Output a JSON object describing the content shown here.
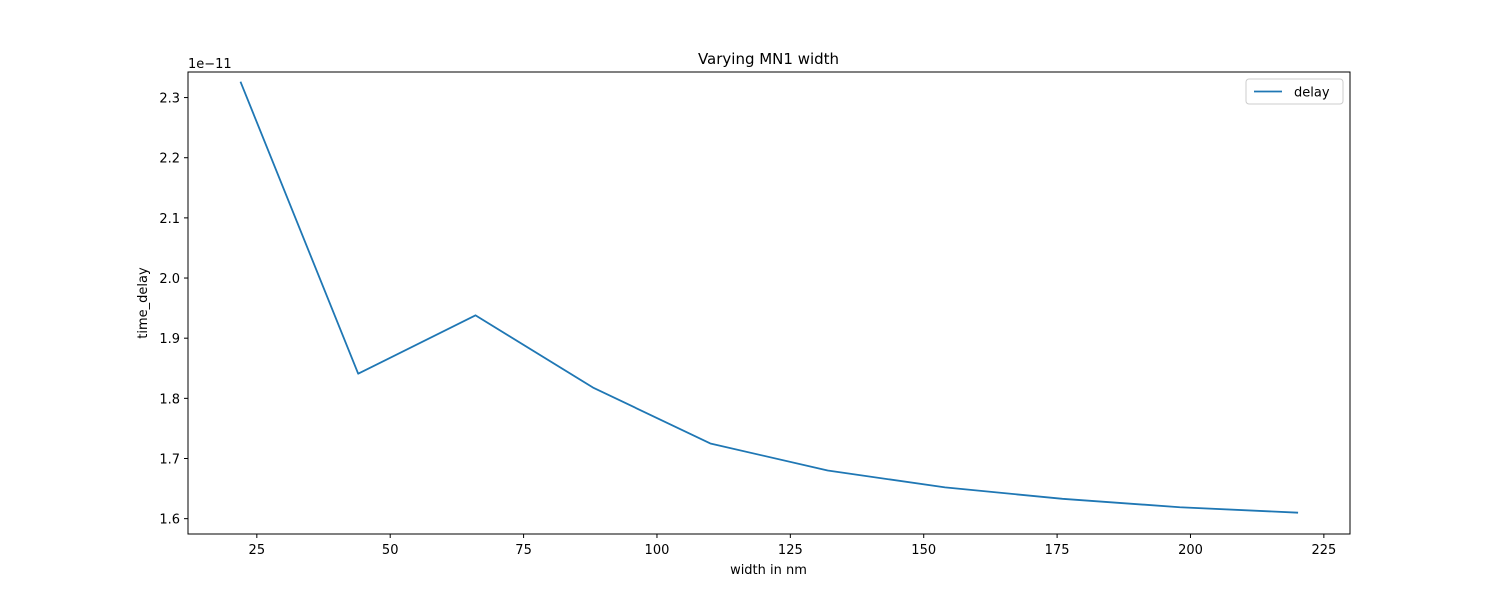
{
  "chart_data": {
    "type": "line",
    "title": "Varying MN1 width",
    "xlabel": "width in nm",
    "ylabel": "time_delay",
    "y_offset_label": "1e−11",
    "xlim": [
      12.1,
      229.9
    ],
    "ylim": [
      1.5745,
      2.3425
    ],
    "xticks": [
      25,
      50,
      75,
      100,
      125,
      150,
      175,
      200,
      225
    ],
    "xtick_labels": [
      "25",
      "50",
      "75",
      "100",
      "125",
      "150",
      "175",
      "200",
      "225"
    ],
    "yticks": [
      1.6,
      1.7,
      1.8,
      1.9,
      2.0,
      2.1,
      2.2,
      2.3
    ],
    "ytick_labels": [
      "1.6",
      "1.7",
      "1.8",
      "1.9",
      "2.0",
      "2.1",
      "2.2",
      "2.3"
    ],
    "grid": false,
    "legend_position": "top-right",
    "series": [
      {
        "name": "delay",
        "color": "#1f77b4",
        "x": [
          22,
          44,
          66,
          88,
          110,
          132,
          154,
          176,
          198,
          220
        ],
        "y": [
          2.325,
          1.841,
          1.938,
          1.818,
          1.725,
          1.68,
          1.652,
          1.633,
          1.619,
          1.61
        ]
      }
    ]
  }
}
